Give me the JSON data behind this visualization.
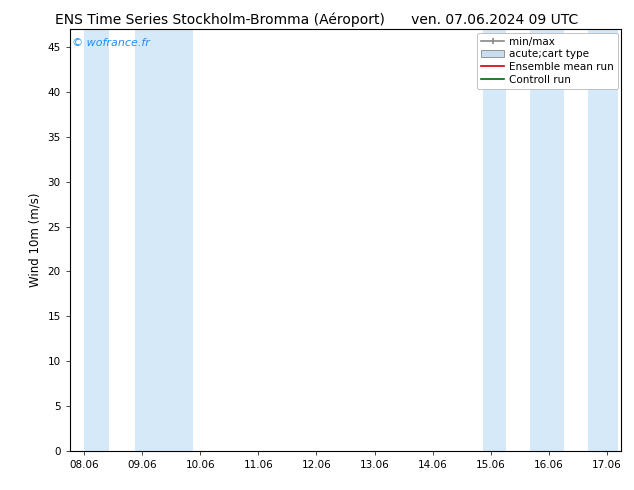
{
  "title_left": "ENS Time Series Stockholm-Bromma (Aéroport)",
  "title_right": "ven. 07.06.2024 09 UTC",
  "ylabel": "Wind 10m (m/s)",
  "watermark": "© wofrance.fr",
  "ylim": [
    0,
    47
  ],
  "yticks": [
    0,
    5,
    10,
    15,
    20,
    25,
    30,
    35,
    40,
    45
  ],
  "xtick_labels": [
    "08.06",
    "09.06",
    "10.06",
    "11.06",
    "12.06",
    "13.06",
    "14.06",
    "15.06",
    "16.06",
    "17.06"
  ],
  "num_xticks": 10,
  "shaded_bands": [
    {
      "xstart": 0.0,
      "xend": 0.42
    },
    {
      "xstart": 0.87,
      "xend": 1.87
    },
    {
      "xstart": 6.87,
      "xend": 7.27
    },
    {
      "xstart": 7.67,
      "xend": 8.27
    },
    {
      "xstart": 8.67,
      "xend": 9.2
    }
  ],
  "band_color": "#d6e9f8",
  "background_color": "#ffffff",
  "legend_labels": [
    "min/max",
    "acute;cart type",
    "Ensemble mean run",
    "Controll run"
  ],
  "legend_colors_line": [
    "#999999",
    "#c0d8ec",
    "#ff0000",
    "#008000"
  ],
  "title_fontsize": 10,
  "watermark_color": "#1e90ff",
  "watermark_fontsize": 8,
  "tick_label_fontsize": 7.5,
  "ylabel_fontsize": 8.5,
  "legend_fontsize": 7.5
}
